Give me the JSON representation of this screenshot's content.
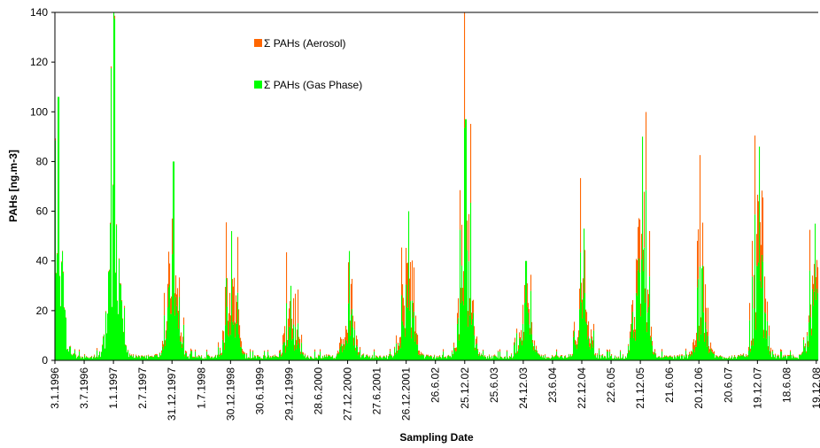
{
  "chart_data": {
    "type": "bar",
    "stacked": true,
    "xlabel": "Sampling Date",
    "ylabel": "PAHs [ng.m-3]",
    "ylim": [
      0,
      140
    ],
    "yticks": [
      0,
      20,
      40,
      60,
      80,
      100,
      120,
      140
    ],
    "xlim": [
      "1996-01-03",
      "2008-12-31"
    ],
    "x_ticks": [
      {
        "label": "3.1.1996",
        "date": "1996-01-03"
      },
      {
        "label": "3.7.1996",
        "date": "1996-07-03"
      },
      {
        "label": "1.1.1997",
        "date": "1997-01-01"
      },
      {
        "label": "2.7.1997",
        "date": "1997-07-02"
      },
      {
        "label": "31.12.1997",
        "date": "1997-12-31"
      },
      {
        "label": "1.7.1998",
        "date": "1998-07-01"
      },
      {
        "label": "30.12.1998",
        "date": "1998-12-30"
      },
      {
        "label": "30.6.1999",
        "date": "1999-06-30"
      },
      {
        "label": "29.12.1999",
        "date": "1999-12-29"
      },
      {
        "label": "28.6.2000",
        "date": "2000-06-28"
      },
      {
        "label": "27.12.2000",
        "date": "2000-12-27"
      },
      {
        "label": "27.6.2001",
        "date": "2001-06-27"
      },
      {
        "label": "26.12.2001",
        "date": "2001-12-26"
      },
      {
        "label": "26.6.02",
        "date": "2002-06-26"
      },
      {
        "label": "25.12.02",
        "date": "2002-12-25"
      },
      {
        "label": "25.6.03",
        "date": "2003-06-25"
      },
      {
        "label": "24.12.03",
        "date": "2003-12-24"
      },
      {
        "label": "23.6.04",
        "date": "2004-06-23"
      },
      {
        "label": "22.12.04",
        "date": "2004-12-22"
      },
      {
        "label": "22.6.05",
        "date": "2005-06-22"
      },
      {
        "label": "21.12.05",
        "date": "2005-12-21"
      },
      {
        "label": "21.6.06",
        "date": "2006-06-21"
      },
      {
        "label": "20.12.06",
        "date": "2006-12-20"
      },
      {
        "label": "20.6.07",
        "date": "2007-06-20"
      },
      {
        "label": "19.12.07",
        "date": "2007-12-19"
      },
      {
        "label": "18.6.08",
        "date": "2008-06-18"
      },
      {
        "label": "19.12.08",
        "date": "2008-12-19"
      }
    ],
    "grid": {
      "horizontal": false,
      "vertical": false
    },
    "legend": {
      "placement": "top-center"
    },
    "series": [
      {
        "name": "Σ PAHs  (Gas Phase)",
        "color": "#00ff00"
      },
      {
        "name": "Σ PAHs  (Aerosol)",
        "color": "#ff6600"
      }
    ],
    "winter_peaks": [
      {
        "date": "1996-01-25",
        "gas": 106,
        "aerosol": 0
      },
      {
        "date": "1997-01-05",
        "gas": 140,
        "aerosol": 1
      },
      {
        "date": "1998-01-10",
        "gas": 80,
        "aerosol": 34
      },
      {
        "date": "1999-01-05",
        "gas": 52,
        "aerosol": 44
      },
      {
        "date": "2000-01-10",
        "gas": 30,
        "aerosol": 25
      },
      {
        "date": "2001-01-05",
        "gas": 44,
        "aerosol": 28
      },
      {
        "date": "2002-01-10",
        "gas": 60,
        "aerosol": 45
      },
      {
        "date": "2003-01-01",
        "gas": 97,
        "aerosol": 43
      },
      {
        "date": "2004-01-10",
        "gas": 40,
        "aerosol": 16
      },
      {
        "date": "2005-01-05",
        "gas": 53,
        "aerosol": 29
      },
      {
        "date": "2006-01-01",
        "gas": 90,
        "aerosol": 44
      },
      {
        "date": "2007-01-05",
        "gas": 37,
        "aerosol": 35
      },
      {
        "date": "2008-01-01",
        "gas": 86,
        "aerosol": 46
      },
      {
        "date": "2008-12-10",
        "gas": 55,
        "aerosol": 19
      }
    ]
  }
}
